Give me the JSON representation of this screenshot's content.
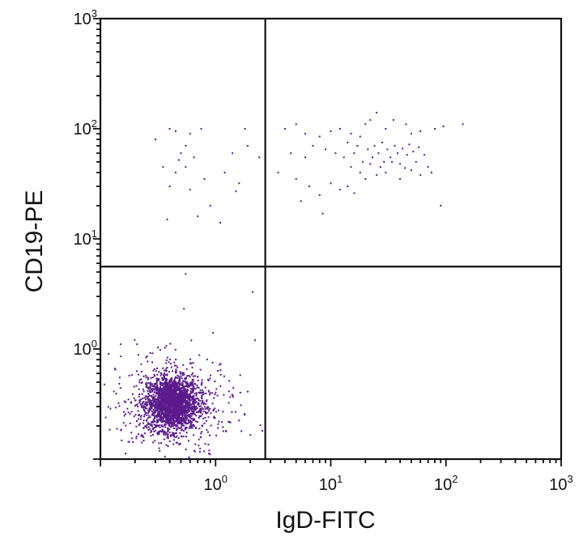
{
  "chart_data": {
    "type": "scatter",
    "title": "",
    "xlabel": "IgD-FITC",
    "ylabel": "CD19-PE",
    "x_scale": "log",
    "y_scale": "log",
    "xlim": [
      0.1,
      1000
    ],
    "ylim": [
      0.1,
      1000
    ],
    "x_ticks": [
      {
        "value": 1,
        "base": "10",
        "exp": "0"
      },
      {
        "value": 10,
        "base": "10",
        "exp": "1"
      },
      {
        "value": 100,
        "base": "10",
        "exp": "2"
      },
      {
        "value": 1000,
        "base": "10",
        "exp": "3"
      }
    ],
    "y_ticks": [
      {
        "value": 1,
        "base": "10",
        "exp": "0"
      },
      {
        "value": 10,
        "base": "10",
        "exp": "1"
      },
      {
        "value": 100,
        "base": "10",
        "exp": "2"
      },
      {
        "value": 1000,
        "base": "10",
        "exp": "3"
      }
    ],
    "quadrant_gate": {
      "x": 2.7,
      "y": 5.6
    },
    "grid": false,
    "dot_color": "#5a1a8c",
    "series": [
      {
        "points": [
          [
            1.5,
            27
          ],
          [
            0.95,
            1.4
          ],
          [
            2.2,
            1.2
          ],
          [
            0.55,
            4.8
          ],
          [
            2.1,
            3.3
          ],
          [
            0.4,
            100
          ],
          [
            0.45,
            95
          ],
          [
            0.6,
            90
          ],
          [
            0.75,
            100
          ],
          [
            1.8,
            100
          ],
          [
            0.3,
            80
          ],
          [
            0.5,
            60
          ],
          [
            0.65,
            55
          ],
          [
            1.4,
            60
          ],
          [
            1.9,
            70
          ],
          [
            0.35,
            45
          ],
          [
            0.45,
            40
          ],
          [
            0.55,
            45
          ],
          [
            1.2,
            40
          ],
          [
            2.4,
            55
          ],
          [
            0.4,
            30
          ],
          [
            0.6,
            28
          ],
          [
            0.8,
            35
          ],
          [
            1.6,
            32
          ],
          [
            0.38,
            15
          ],
          [
            0.7,
            16
          ],
          [
            1.1,
            14
          ],
          [
            0.55,
            70
          ],
          [
            0.48,
            52
          ],
          [
            0.9,
            20
          ],
          [
            4,
            100
          ],
          [
            5,
            110
          ],
          [
            6,
            90
          ],
          [
            8,
            85
          ],
          [
            10,
            95
          ],
          [
            12,
            100
          ],
          [
            15,
            90
          ],
          [
            18,
            85
          ],
          [
            20,
            110
          ],
          [
            22,
            120
          ],
          [
            25,
            140
          ],
          [
            30,
            100
          ],
          [
            35,
            120
          ],
          [
            45,
            110
          ],
          [
            50,
            90
          ],
          [
            60,
            95
          ],
          [
            80,
            100
          ],
          [
            95,
            105
          ],
          [
            140,
            110
          ],
          [
            4.5,
            60
          ],
          [
            6,
            55
          ],
          [
            7,
            70
          ],
          [
            9,
            65
          ],
          [
            11,
            60
          ],
          [
            13,
            55
          ],
          [
            14,
            75
          ],
          [
            16,
            60
          ],
          [
            17,
            70
          ],
          [
            19,
            50
          ],
          [
            21,
            65
          ],
          [
            23,
            55
          ],
          [
            24,
            70
          ],
          [
            26,
            60
          ],
          [
            28,
            75
          ],
          [
            29,
            50
          ],
          [
            31,
            65
          ],
          [
            33,
            55
          ],
          [
            36,
            70
          ],
          [
            38,
            60
          ],
          [
            40,
            48
          ],
          [
            42,
            66
          ],
          [
            46,
            58
          ],
          [
            48,
            72
          ],
          [
            52,
            62
          ],
          [
            55,
            50
          ],
          [
            58,
            68
          ],
          [
            65,
            58
          ],
          [
            70,
            45
          ],
          [
            3.5,
            40
          ],
          [
            5,
            35
          ],
          [
            6.5,
            30
          ],
          [
            8,
            25
          ],
          [
            10,
            32
          ],
          [
            12,
            28
          ],
          [
            14,
            30
          ],
          [
            16,
            26
          ],
          [
            18,
            40
          ],
          [
            20,
            35
          ],
          [
            25,
            38
          ],
          [
            30,
            40
          ],
          [
            40,
            35
          ],
          [
            50,
            42
          ],
          [
            60,
            38
          ],
          [
            75,
            40
          ],
          [
            8.5,
            17
          ],
          [
            90,
            20
          ],
          [
            5.5,
            22
          ],
          [
            15,
            45
          ],
          [
            22,
            48
          ],
          [
            27,
            45
          ],
          [
            34,
            50
          ],
          [
            44,
            44
          ]
        ]
      }
    ],
    "cluster": {
      "center_x": 0.42,
      "center_y": 0.32,
      "count": 2600
    }
  }
}
